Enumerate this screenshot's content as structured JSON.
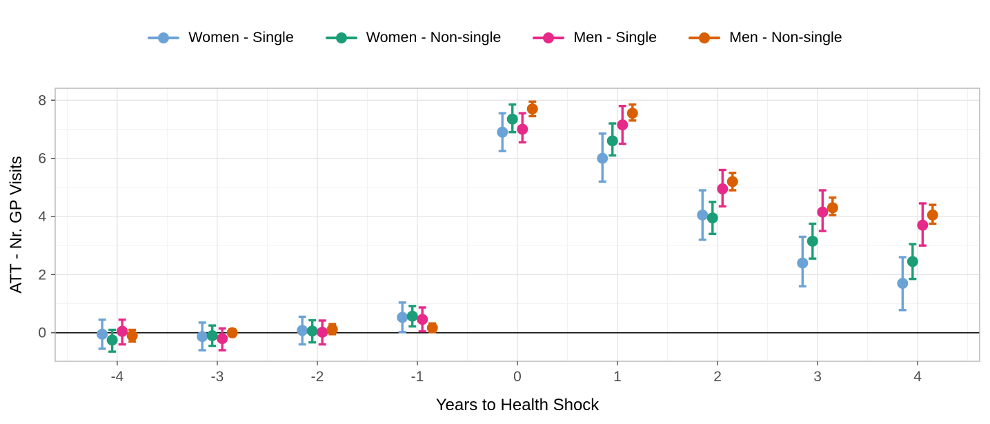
{
  "legend": {
    "position": "top",
    "items": [
      {
        "label": "Women - Single",
        "color": "#6BA3D7"
      },
      {
        "label": "Women - Non-single",
        "color": "#1B9E77"
      },
      {
        "label": "Men - Single",
        "color": "#E7298A"
      },
      {
        "label": "Men - Non-single",
        "color": "#D95F02"
      }
    ]
  },
  "chart_data": {
    "type": "scatter",
    "subtype": "pointrange",
    "title": "",
    "xlabel": "Years to Health Shock",
    "ylabel": "ATT - Nr. GP Visits",
    "x": [
      -4,
      -3,
      -2,
      -1,
      0,
      1,
      2,
      3,
      4
    ],
    "x_ticks": [
      -4,
      -3,
      -2,
      -1,
      0,
      1,
      2,
      3,
      4
    ],
    "y_ticks": [
      0,
      2,
      4,
      6,
      8
    ],
    "xlim": [
      -4.62,
      4.62
    ],
    "ylim": [
      -0.98,
      8.41
    ],
    "grid": "major+minor",
    "legend_position": "top",
    "hline": 0,
    "dodge_offsets": [
      -0.15,
      -0.05,
      0.05,
      0.15
    ],
    "series": [
      {
        "name": "Women - Single",
        "color": "#6BA3D7",
        "offset": -0.15,
        "values": [
          -0.05,
          -0.13,
          0.08,
          0.53,
          6.9,
          6.0,
          4.05,
          2.4,
          1.7
        ],
        "ci_low": [
          -0.55,
          -0.6,
          -0.4,
          0.02,
          6.25,
          5.2,
          3.2,
          1.6,
          0.78
        ],
        "ci_high": [
          0.45,
          0.35,
          0.55,
          1.04,
          7.55,
          6.85,
          4.9,
          3.3,
          2.6
        ]
      },
      {
        "name": "Women - Non-single",
        "color": "#1B9E77",
        "offset": -0.05,
        "values": [
          -0.25,
          -0.1,
          0.06,
          0.57,
          7.35,
          6.6,
          3.95,
          3.15,
          2.45
        ],
        "ci_low": [
          -0.65,
          -0.45,
          -0.33,
          0.22,
          6.9,
          6.1,
          3.4,
          2.55,
          1.85
        ],
        "ci_high": [
          0.1,
          0.25,
          0.43,
          0.92,
          7.85,
          7.2,
          4.5,
          3.75,
          3.05
        ]
      },
      {
        "name": "Men - Single",
        "color": "#E7298A",
        "offset": 0.05,
        "values": [
          0.05,
          -0.2,
          0.02,
          0.46,
          7.0,
          7.15,
          4.95,
          4.15,
          3.7
        ],
        "ci_low": [
          -0.4,
          -0.6,
          -0.4,
          0.05,
          6.55,
          6.5,
          4.35,
          3.5,
          3.0
        ],
        "ci_high": [
          0.45,
          0.15,
          0.42,
          0.87,
          7.55,
          7.8,
          5.6,
          4.9,
          4.45
        ]
      },
      {
        "name": "Men - Non-single",
        "color": "#D95F02",
        "offset": 0.15,
        "values": [
          -0.1,
          0.0,
          0.12,
          0.17,
          7.7,
          7.55,
          5.2,
          4.3,
          4.05
        ],
        "ci_low": [
          -0.3,
          -0.12,
          -0.05,
          0.02,
          7.45,
          7.3,
          4.9,
          4.05,
          3.75
        ],
        "ci_high": [
          0.1,
          0.12,
          0.3,
          0.32,
          7.95,
          7.85,
          5.5,
          4.65,
          4.4
        ]
      }
    ],
    "colors": {
      "grid_major": "#e4e4e4",
      "grid_minor": "#f2f2f2",
      "panel_border": "#b5b5b5",
      "tick_text": "#4d4d4d",
      "zero_line": "#000000",
      "panel_bg": "#ffffff"
    }
  }
}
